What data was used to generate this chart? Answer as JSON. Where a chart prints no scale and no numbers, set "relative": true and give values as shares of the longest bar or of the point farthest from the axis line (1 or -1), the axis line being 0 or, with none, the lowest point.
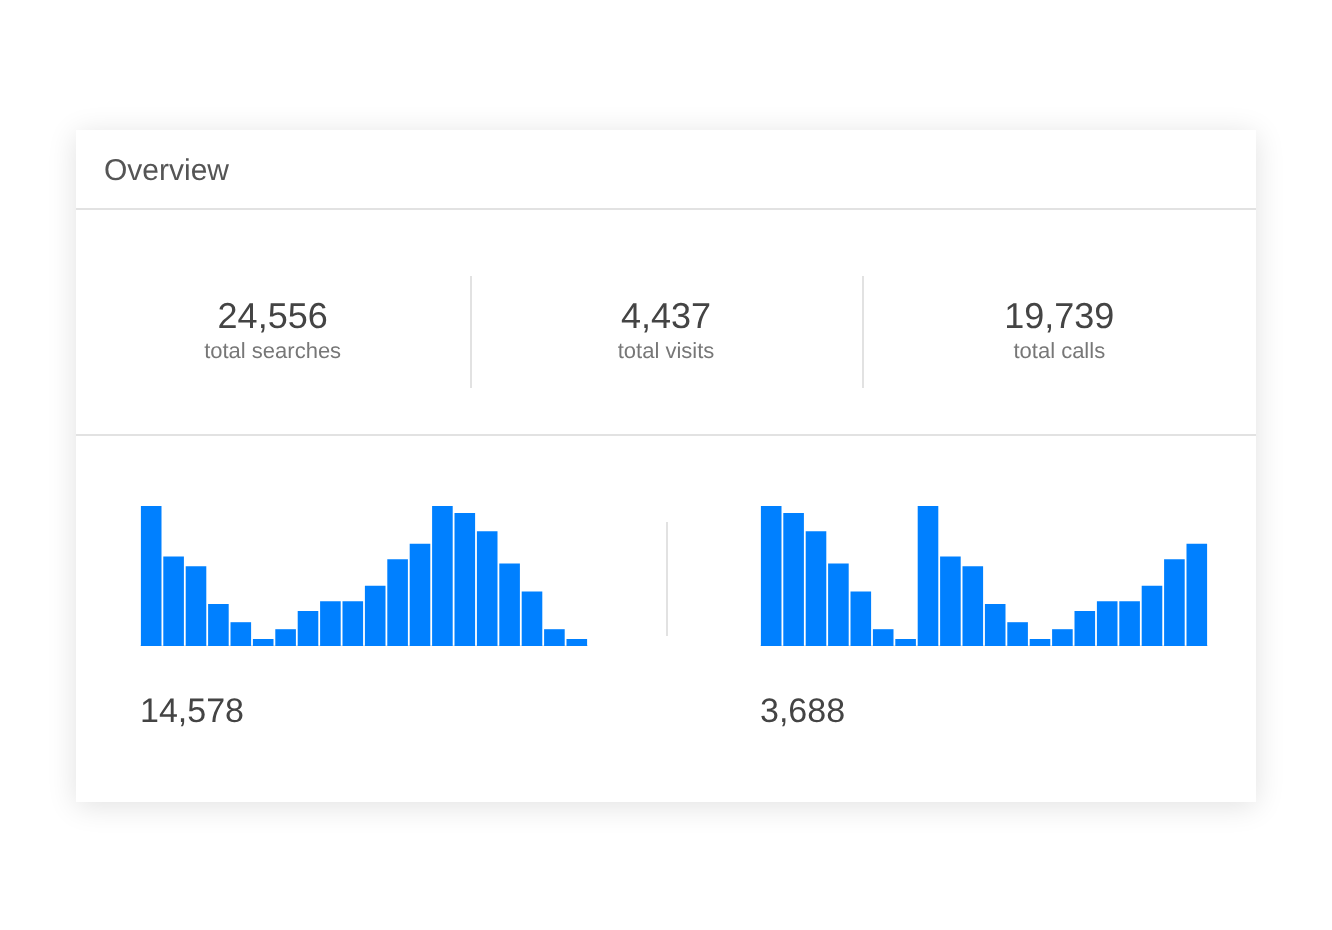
{
  "chart_data": [
    {
      "type": "other",
      "title": "Overview",
      "annotations": [
        "24,556",
        "total searches",
        "4,437",
        "total visits",
        "19,739",
        "total calls"
      ]
    },
    {
      "type": "bar",
      "relative": true,
      "tick_labels": false,
      "color": "#0080ff",
      "categories": [
        null,
        null,
        null,
        null,
        null,
        null,
        null,
        null,
        null,
        null,
        null,
        null,
        null,
        null,
        null,
        null,
        null,
        null,
        null,
        null
      ],
      "values": [
        1.0,
        0.64,
        0.57,
        0.3,
        0.17,
        0.05,
        0.12,
        0.25,
        0.32,
        0.32,
        0.43,
        0.62,
        0.73,
        1.0,
        0.95,
        0.82,
        0.59,
        0.39,
        0.12,
        0.05
      ],
      "annotations": [
        "14,578"
      ]
    },
    {
      "type": "bar",
      "relative": true,
      "tick_labels": false,
      "color": "#0080ff",
      "categories": [
        null,
        null,
        null,
        null,
        null,
        null,
        null,
        null,
        null,
        null,
        null,
        null,
        null,
        null,
        null,
        null,
        null,
        null,
        null,
        null
      ],
      "values": [
        1.0,
        0.95,
        0.82,
        0.59,
        0.39,
        0.12,
        0.05,
        1.0,
        0.64,
        0.57,
        0.3,
        0.17,
        0.05,
        0.12,
        0.25,
        0.32,
        0.32,
        0.43,
        0.62,
        0.73
      ],
      "annotations": [
        "3,688"
      ]
    }
  ]
}
